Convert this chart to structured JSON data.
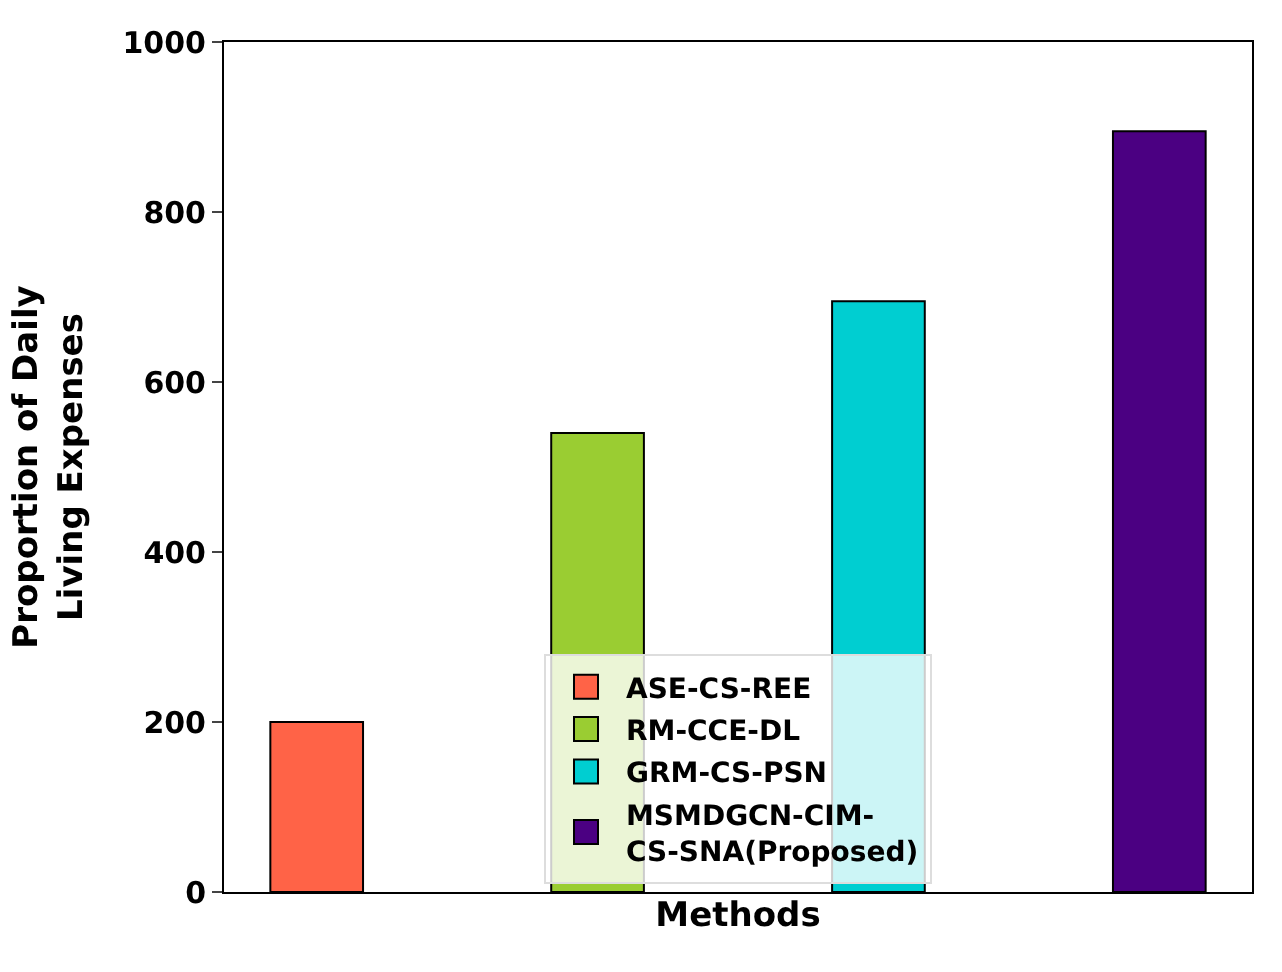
{
  "chart_data": {
    "type": "bar",
    "xlabel": "Methods",
    "ylabel": "Proportion of Daily\nLiving Expenses",
    "categories": [
      null,
      null,
      null,
      null
    ],
    "series": [
      {
        "name": "ASE-CS-REE",
        "color": "#ff6347",
        "values": [
          200,
          null,
          null,
          null
        ]
      },
      {
        "name": "RM-CCE-DL",
        "color": "#9acd32",
        "values": [
          null,
          540,
          null,
          null
        ]
      },
      {
        "name": "GRM-CS-PSN",
        "color": "#00ced1",
        "values": [
          null,
          null,
          695,
          null
        ]
      },
      {
        "name": "MSMDGCN-CIM-\nCS-SNA(Proposed)",
        "color": "#4b0082",
        "values": [
          null,
          null,
          null,
          895
        ]
      }
    ],
    "ylim": [
      0,
      1000
    ],
    "yticks": [
      0,
      200,
      400,
      600,
      800,
      1000
    ],
    "legend": "bottom"
  }
}
